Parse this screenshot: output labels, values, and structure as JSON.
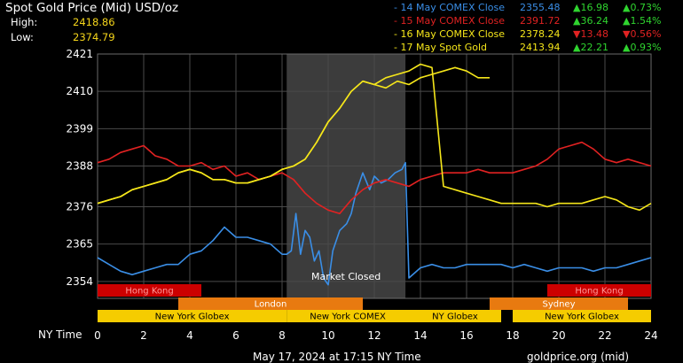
{
  "title": "Spot Gold Price (Mid) USD/oz",
  "stats": {
    "high_label": "High:",
    "high_value": "2418.86",
    "low_label": "Low:",
    "low_value": "2374.79"
  },
  "legend": [
    {
      "label": "- 14 May COMEX Close",
      "price": "2355.48",
      "change": "▲16.98",
      "pct": "▲0.73%",
      "color": "#3a8ee6",
      "change_color": "#2fd52f"
    },
    {
      "label": "- 15 May COMEX Close",
      "price": "2391.72",
      "change": "▲36.24",
      "pct": "▲1.54%",
      "color": "#e12222",
      "change_color": "#2fd52f"
    },
    {
      "label": "- 16 May COMEX Close",
      "price": "2378.24",
      "change": "▼13.48",
      "pct": "▼0.56%",
      "color": "#f5e61a",
      "change_color": "#e12222"
    },
    {
      "label": "- 17 May Spot Gold",
      "price": "2413.94",
      "change": "▲22.21",
      "pct": "▲0.93%",
      "color": "#f5e61a",
      "change_color": "#2fd52f"
    }
  ],
  "axis_time_label": "NY Time",
  "market_closed_label": "Market Closed",
  "footer_timestamp": "May 17, 2024 at 17:15 NY Time",
  "footer_source": "goldprice.org (mid)",
  "markets": [
    {
      "label": "Hong Kong",
      "start": 0,
      "end": 4.5,
      "row": 0,
      "color": "#cc0000",
      "text_color": "#ff9a9a"
    },
    {
      "label": "Hong Kong",
      "start": 19.5,
      "end": 24,
      "row": 0,
      "color": "#cc0000",
      "text_color": "#ff9a9a"
    },
    {
      "label": "London",
      "start": 3.5,
      "end": 11.5,
      "row": 1,
      "color": "#e87a10",
      "text_color": "#ffffff"
    },
    {
      "label": "Sydney",
      "start": 17,
      "end": 23,
      "row": 1,
      "color": "#e87a10",
      "text_color": "#ffffff"
    },
    {
      "label": "New York Globex",
      "start": 0,
      "end": 8.2,
      "row": 2,
      "color": "#f5cc00",
      "text_color": "#000000"
    },
    {
      "label": "New York COMEX",
      "start": 8.2,
      "end": 13.5,
      "row": 2,
      "color": "#f5cc00",
      "text_color": "#000000"
    },
    {
      "label": "NY Globex",
      "start": 13.5,
      "end": 17.5,
      "row": 2,
      "color": "#f5cc00",
      "text_color": "#000000"
    },
    {
      "label": "New York Globex",
      "start": 18,
      "end": 24,
      "row": 2,
      "color": "#f5cc00",
      "text_color": "#000000"
    }
  ],
  "chart_data": {
    "type": "line",
    "title": "Spot Gold Price (Mid) USD/oz",
    "xlabel": "NY Time",
    "ylabel": "",
    "xlim": [
      0,
      24
    ],
    "ylim": [
      2349,
      2421
    ],
    "x_ticks": [
      0,
      2,
      4,
      6,
      8,
      10,
      12,
      14,
      16,
      18,
      20,
      22,
      24
    ],
    "y_ticks": [
      2354,
      2365,
      2376,
      2388,
      2399,
      2410,
      2421
    ],
    "grid": true,
    "shaded_region": {
      "x_start": 8.2,
      "x_end": 13.35,
      "label": "Market Closed"
    },
    "series": [
      {
        "name": "14 May COMEX Close",
        "color": "#3a8ee6",
        "x": [
          0,
          0.5,
          1,
          1.5,
          2,
          2.5,
          3,
          3.5,
          4,
          4.5,
          5,
          5.5,
          6,
          6.5,
          7,
          7.5,
          8,
          8.2,
          8.4,
          8.6,
          8.8,
          9,
          9.2,
          9.4,
          9.6,
          9.8,
          10,
          10.2,
          10.5,
          10.8,
          11,
          11.2,
          11.5,
          11.8,
          12,
          12.3,
          12.6,
          12.9,
          13.2,
          13.35,
          13.5,
          14,
          14.5,
          15,
          15.5,
          16,
          16.5,
          17,
          17.5,
          18,
          18.5,
          19,
          19.5,
          20,
          20.5,
          21,
          21.5,
          22,
          22.5,
          23,
          23.5,
          24
        ],
        "values": [
          2361,
          2359,
          2357,
          2356,
          2357,
          2358,
          2359,
          2359,
          2362,
          2363,
          2366,
          2370,
          2367,
          2367,
          2366,
          2365,
          2362,
          2362,
          2363,
          2374,
          2362,
          2369,
          2367,
          2360,
          2363,
          2355,
          2353,
          2363,
          2369,
          2371,
          2374,
          2380,
          2386,
          2381,
          2385,
          2383,
          2384,
          2386,
          2387,
          2389,
          2355,
          2358,
          2359,
          2358,
          2358,
          2359,
          2359,
          2359,
          2359,
          2358,
          2359,
          2358,
          2357,
          2358,
          2358,
          2358,
          2357,
          2358,
          2358,
          2359,
          2360,
          2361
        ]
      },
      {
        "name": "15 May COMEX Close",
        "color": "#e12222",
        "x": [
          0,
          0.5,
          1,
          1.5,
          2,
          2.5,
          3,
          3.5,
          4,
          4.5,
          5,
          5.5,
          6,
          6.5,
          7,
          7.5,
          8,
          8.5,
          9,
          9.5,
          10,
          10.5,
          11,
          11.5,
          12,
          12.5,
          13,
          13.5,
          14,
          14.5,
          15,
          15.5,
          16,
          16.5,
          17,
          17.5,
          18,
          18.5,
          19,
          19.5,
          20,
          20.5,
          21,
          21.5,
          22,
          22.5,
          23,
          23.5,
          24
        ],
        "values": [
          2389,
          2390,
          2392,
          2393,
          2394,
          2391,
          2390,
          2388,
          2388,
          2389,
          2387,
          2388,
          2385,
          2386,
          2384,
          2385,
          2386,
          2384,
          2380,
          2377,
          2375,
          2374,
          2378,
          2381,
          2383,
          2384,
          2383,
          2382,
          2384,
          2385,
          2386,
          2386,
          2386,
          2387,
          2386,
          2386,
          2386,
          2387,
          2388,
          2390,
          2393,
          2394,
          2395,
          2393,
          2390,
          2389,
          2390,
          2389,
          2388
        ]
      },
      {
        "name": "16 May COMEX Close",
        "color": "#f5e61a",
        "x": [
          0,
          0.5,
          1,
          1.5,
          2,
          2.5,
          3,
          3.5,
          4,
          4.5,
          5,
          5.5,
          6,
          6.5,
          7,
          7.5,
          8,
          8.5,
          9,
          9.5,
          10,
          10.5,
          11,
          11.5,
          12,
          12.5,
          13,
          13.5,
          14,
          14.5,
          15,
          15.5,
          16,
          16.5,
          17,
          17.5,
          18,
          18.5,
          19,
          19.5,
          20,
          20.5,
          21,
          21.5,
          22,
          22.5,
          23,
          23.5,
          24
        ],
        "values": [
          2377,
          2378,
          2379,
          2381,
          2382,
          2383,
          2384,
          2386,
          2387,
          2386,
          2384,
          2384,
          2383,
          2383,
          2384,
          2385,
          2387,
          2388,
          2390,
          2395,
          2401,
          2405,
          2410,
          2413,
          2412,
          2414,
          2415,
          2416,
          2418,
          2417,
          2382,
          2381,
          2380,
          2379,
          2378,
          2377,
          2377,
          2377,
          2377,
          2376,
          2377,
          2377,
          2377,
          2378,
          2379,
          2378,
          2376,
          2375,
          2377
        ]
      },
      {
        "name": "17 May Spot Gold",
        "color": "#f5e61a",
        "x": [
          0,
          0.5,
          1,
          1.5,
          2,
          2.5,
          3,
          3.5,
          4,
          4.5,
          5,
          5.5,
          6,
          6.5,
          7,
          7.5,
          8,
          8.5,
          9,
          9.5,
          10,
          10.5,
          11,
          11.5,
          12,
          12.5,
          13,
          13.5,
          14,
          14.5,
          15,
          15.5,
          16,
          16.5,
          17
        ],
        "values": [
          2377,
          2378,
          2379,
          2381,
          2382,
          2383,
          2384,
          2386,
          2387,
          2386,
          2384,
          2384,
          2383,
          2383,
          2384,
          2385,
          2387,
          2388,
          2390,
          2395,
          2401,
          2405,
          2410,
          2413,
          2412,
          2411,
          2413,
          2412,
          2414,
          2415,
          2416,
          2417,
          2416,
          2414,
          2414
        ]
      }
    ]
  }
}
